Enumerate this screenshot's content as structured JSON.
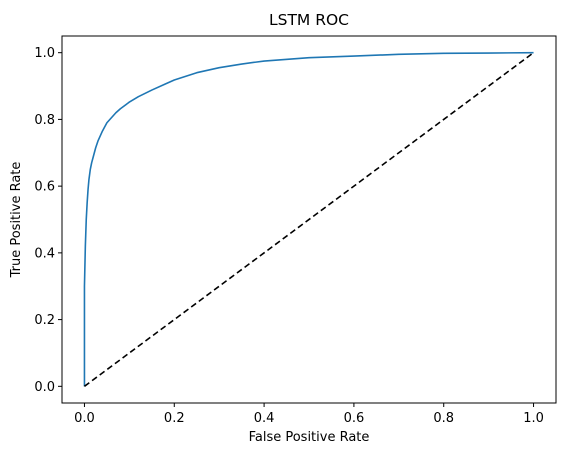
{
  "chart_data": {
    "type": "line",
    "title": "LSTM ROC",
    "xlabel": "False Positive Rate",
    "ylabel": "True Positive Rate",
    "xlim": [
      -0.05,
      1.05
    ],
    "ylim": [
      -0.05,
      1.05
    ],
    "xticks": [
      "0.0",
      "0.2",
      "0.4",
      "0.6",
      "0.8",
      "1.0"
    ],
    "yticks": [
      "0.0",
      "0.2",
      "0.4",
      "0.6",
      "0.8",
      "1.0"
    ],
    "grid": false,
    "legend": "none",
    "series": [
      {
        "style": "solid",
        "color": "#1f77b4",
        "x": [
          0.0,
          0.0,
          0.002,
          0.004,
          0.006,
          0.008,
          0.01,
          0.013,
          0.016,
          0.02,
          0.025,
          0.03,
          0.04,
          0.05,
          0.06,
          0.07,
          0.08,
          0.1,
          0.12,
          0.15,
          0.18,
          0.2,
          0.25,
          0.3,
          0.35,
          0.4,
          0.5,
          0.6,
          0.7,
          0.8,
          0.9,
          1.0
        ],
        "y": [
          0.0,
          0.3,
          0.42,
          0.5,
          0.55,
          0.59,
          0.62,
          0.65,
          0.67,
          0.69,
          0.715,
          0.735,
          0.765,
          0.79,
          0.805,
          0.82,
          0.832,
          0.852,
          0.868,
          0.888,
          0.906,
          0.918,
          0.94,
          0.955,
          0.966,
          0.975,
          0.985,
          0.99,
          0.995,
          0.998,
          0.999,
          1.0
        ]
      },
      {
        "style": "dashed",
        "color": "#000000",
        "x": [
          0.0,
          1.0
        ],
        "y": [
          0.0,
          1.0
        ]
      }
    ]
  }
}
